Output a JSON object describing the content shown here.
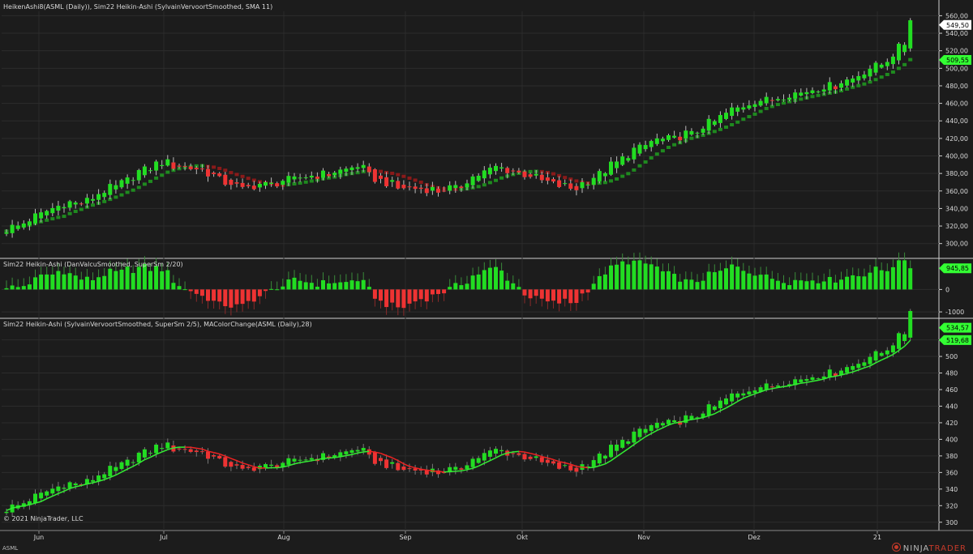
{
  "panels": {
    "price_title": "HeikenAshi8(ASML (Daily)), Sim22 Heikin-Ashi (SylvainVervoortSmoothed, SMA 11)",
    "osc_title": "Sim22 Heikin-Ashi (DanValcuSmoothed, SuperSm 2/20)",
    "smooth_title": "Sim22 Heikin-Ashi (SylvainVervoortSmoothed, SuperSm 2/5), MAColorChange(ASML (Daily),28)"
  },
  "footer": {
    "copyright": "© 2021 NinjaTrader, LLC",
    "symbol": "ASML",
    "brand_a": "NINJA",
    "brand_b": "TRADER"
  },
  "colors": {
    "background": "#1c1c1c",
    "up": "#22dd22",
    "down": "#ee3333",
    "ha_up": "#1f8a1f",
    "ha_down": "#8a1a1a",
    "ma_up": "#33ee33",
    "ma_down": "#ee2222",
    "price_tag": "#ffffff",
    "green_tag": "#33ff33"
  },
  "chart_data": [
    {
      "type": "candlestick",
      "name": "price",
      "x_labels": [
        "Jun",
        "Jul",
        "Aug",
        "Sep",
        "Okt",
        "Nov",
        "Dez",
        "21"
      ],
      "y_ticks": [
        300,
        320,
        340,
        360,
        380,
        400,
        420,
        440,
        460,
        480,
        500,
        520,
        540,
        560
      ],
      "y_tick_labels": [
        "300,00",
        "320,00",
        "340,00",
        "360,00",
        "380,00",
        "400,00",
        "420,00",
        "440,00",
        "460,00",
        "480,00",
        "500,00",
        "520,00",
        "540,00",
        "560,00"
      ],
      "ylim": [
        284,
        565
      ],
      "close_keypoints": [
        316,
        325,
        338,
        347,
        348,
        360,
        372,
        385,
        395,
        388,
        384,
        372,
        362,
        366,
        370,
        377,
        378,
        383,
        390,
        372,
        363,
        362,
        360,
        364,
        378,
        390,
        382,
        375,
        367,
        362,
        375,
        393,
        408,
        420,
        422,
        427,
        440,
        455,
        462,
        466,
        470,
        476,
        480,
        488,
        500,
        512,
        537
      ],
      "last_price": 549.5,
      "last_price_label": "549,50",
      "indicator_value": 509.55,
      "indicator_label": "509,55"
    },
    {
      "type": "bar",
      "name": "oscillator",
      "y_ticks": [
        0,
        -1000
      ],
      "y_tick_labels": [
        "0",
        "-1000"
      ],
      "ylim": [
        -1250,
        1350
      ],
      "last_value": 945.85,
      "last_label": "945,85"
    },
    {
      "type": "candlestick",
      "name": "smoothed",
      "y_ticks": [
        300,
        320,
        340,
        360,
        380,
        400,
        420,
        440,
        460,
        480,
        500,
        520
      ],
      "y_tick_labels": [
        "300",
        "320",
        "340",
        "360",
        "380",
        "400",
        "420",
        "440",
        "460",
        "480",
        "500",
        "520"
      ],
      "ylim": [
        290,
        545
      ],
      "last_value_a": 534.57,
      "last_label_a": "534,57",
      "last_value_b": 519.68,
      "last_label_b": "519,68"
    }
  ]
}
